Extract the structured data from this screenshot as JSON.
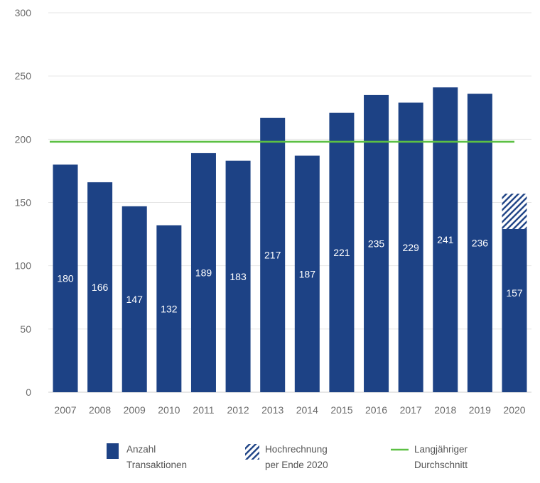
{
  "chart_data": {
    "type": "bar",
    "title": "",
    "xlabel": "",
    "ylabel": "",
    "ylim": [
      0,
      300
    ],
    "yticks": [
      "0",
      "50",
      "100",
      "150",
      "200",
      "250",
      "300"
    ],
    "grid": true,
    "categories": [
      "2007",
      "2008",
      "2009",
      "2010",
      "2011",
      "2012",
      "2013",
      "2014",
      "2015",
      "2016",
      "2017",
      "2018",
      "2019",
      "2020"
    ],
    "series": [
      {
        "name": "Anzahl Transaktionen",
        "values": [
          180,
          166,
          147,
          132,
          189,
          183,
          217,
          187,
          221,
          235,
          229,
          241,
          236,
          129
        ]
      },
      {
        "name": "Hochrechnung per Ende 2020",
        "values": [
          0,
          0,
          0,
          0,
          0,
          0,
          0,
          0,
          0,
          0,
          0,
          0,
          0,
          28
        ]
      }
    ],
    "data_labels": [
      "180",
      "166",
      "147",
      "132",
      "189",
      "183",
      "217",
      "187",
      "221",
      "235",
      "229",
      "241",
      "236",
      "157"
    ],
    "average_line": {
      "name": "Langjähriger Durchschnitt",
      "value": 198
    },
    "legend_placement": "bottom",
    "legend": [
      {
        "line1": "Anzahl",
        "line2": "Transaktionen",
        "kind": "solid"
      },
      {
        "line1": "Hochrechnung",
        "line2": "per Ende 2020",
        "kind": "hatch"
      },
      {
        "line1": "Langjähriger",
        "line2": "Durchschnitt",
        "kind": "line"
      }
    ],
    "colors": {
      "bar": "#1d4285",
      "average": "#5cc043",
      "grid": "#e6e6e6"
    }
  }
}
